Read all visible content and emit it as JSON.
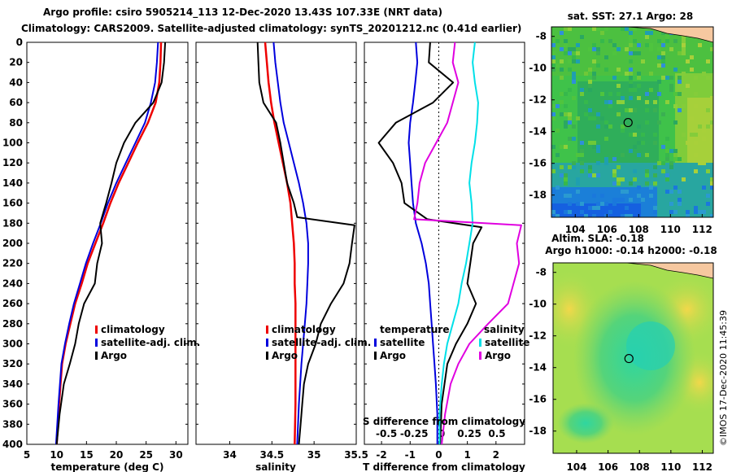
{
  "titles": {
    "line1": "Argo profile: csiro 5905214_113 12-Dec-2020 13.43S 107.33E (NRT data)",
    "line2": "Climatology: CARS2009. Satellite-adjusted climatology: synTS_20201212.nc (0.41d earlier)",
    "sst_title": "sat. SST: 27.1 Argo: 28",
    "sla_title_a": "Altim. SLA: -0.18",
    "sla_title_b": "Argo h1000: -0.14 h2000: -0.18",
    "copyright": "©IMOS 17-Dec-2020 11:45:39"
  },
  "colors": {
    "argo": "#000000",
    "climatology": "#ee0000",
    "satellite": "#0000dd",
    "sat_salinity_diff": "#00e0e8",
    "salinity_diff": "#e000e0"
  },
  "chart_data": [
    {
      "type": "line",
      "panel": "temperature",
      "xlabel": "temperature (deg C)",
      "ylabel": "depth",
      "xlim": [
        5,
        32
      ],
      "ylim": [
        0,
        400
      ],
      "xticks": [
        "5",
        "10",
        "15",
        "20",
        "25",
        "30"
      ],
      "yticks": [
        "0",
        "20",
        "40",
        "60",
        "80",
        "100",
        "120",
        "140",
        "160",
        "180",
        "200",
        "220",
        "240",
        "260",
        "280",
        "300",
        "320",
        "340",
        "360",
        "380",
        "400"
      ],
      "legend": {
        "climatology": "climatology",
        "satellite": "satellite-adj. clim.",
        "argo": "Argo"
      },
      "series": [
        {
          "name": "climatology",
          "x": [
            27.5,
            27.4,
            27.2,
            26.6,
            25.3,
            23.6,
            22.0,
            20.4,
            19.0,
            17.8,
            16.5,
            15.2,
            14.2,
            13.1,
            12.3,
            11.5,
            10.9,
            10.4,
            10.0
          ],
          "depth": [
            0,
            20,
            40,
            60,
            80,
            100,
            120,
            140,
            160,
            180,
            200,
            220,
            240,
            260,
            280,
            300,
            320,
            360,
            400
          ]
        },
        {
          "name": "satellite-adj. clim.",
          "x": [
            27.0,
            26.8,
            26.5,
            25.8,
            24.8,
            23.2,
            21.6,
            20.0,
            18.6,
            17.4,
            16.1,
            14.9,
            13.9,
            12.9,
            12.1,
            11.4,
            10.8,
            10.3,
            9.9
          ],
          "depth": [
            0,
            20,
            40,
            60,
            80,
            100,
            120,
            140,
            160,
            180,
            200,
            220,
            240,
            260,
            280,
            300,
            320,
            360,
            400
          ]
        },
        {
          "name": "Argo",
          "x": [
            28.2,
            28.0,
            27.6,
            26.2,
            23.2,
            21.3,
            20.0,
            19.2,
            18.3,
            17.3,
            17.6,
            16.8,
            16.4,
            14.6,
            13.7,
            13.1,
            12.2,
            11.2,
            10.5,
            10.0
          ],
          "depth": [
            0,
            20,
            40,
            60,
            80,
            100,
            120,
            140,
            160,
            180,
            200,
            220,
            240,
            260,
            280,
            300,
            320,
            340,
            370,
            400
          ]
        }
      ]
    },
    {
      "type": "line",
      "panel": "salinity",
      "xlabel": "salinity",
      "xlim": [
        33.6,
        35.5
      ],
      "ylim": [
        0,
        400
      ],
      "xticks": [
        "34",
        "34.5",
        "35",
        "35.5"
      ],
      "legend": {
        "climatology": "climatology",
        "satellite": "satellite-adj. clim.",
        "argo": "Argo"
      },
      "series": [
        {
          "name": "climatology",
          "x": [
            34.42,
            34.44,
            34.46,
            34.49,
            34.53,
            34.58,
            34.63,
            34.68,
            34.72,
            34.74,
            34.76,
            34.77,
            34.77,
            34.78,
            34.78,
            34.78,
            34.78,
            34.78,
            34.77
          ],
          "depth": [
            0,
            20,
            40,
            60,
            80,
            100,
            120,
            140,
            160,
            180,
            200,
            220,
            240,
            260,
            280,
            300,
            320,
            360,
            400
          ]
        },
        {
          "name": "satellite-adj. clim.",
          "x": [
            34.52,
            34.54,
            34.57,
            34.6,
            34.64,
            34.7,
            34.76,
            34.82,
            34.87,
            34.91,
            34.93,
            34.93,
            34.92,
            34.91,
            34.89,
            34.87,
            34.85,
            34.82,
            34.8
          ],
          "depth": [
            0,
            20,
            40,
            60,
            80,
            100,
            120,
            140,
            160,
            180,
            200,
            220,
            240,
            260,
            280,
            300,
            320,
            360,
            400
          ]
        },
        {
          "name": "Argo",
          "x": [
            34.33,
            34.34,
            34.35,
            34.4,
            34.55,
            34.6,
            34.64,
            34.68,
            34.76,
            34.8,
            35.48,
            35.45,
            35.42,
            35.35,
            35.2,
            35.08,
            35.02,
            34.93,
            34.88,
            34.86,
            34.84,
            34.82
          ],
          "depth": [
            0,
            20,
            40,
            60,
            80,
            100,
            120,
            140,
            160,
            174,
            182,
            200,
            220,
            240,
            260,
            280,
            300,
            320,
            340,
            360,
            380,
            400
          ]
        }
      ]
    },
    {
      "type": "line",
      "panel": "difference",
      "xlabel": "T difference from climatology",
      "top_label": "S difference from climatology",
      "xlim": [
        -2.6,
        3.0
      ],
      "ylim": [
        0,
        400
      ],
      "xticks": [
        "-2",
        "-1",
        "0",
        "1",
        "2"
      ],
      "top_xticks": [
        "-0.5",
        "-0.25",
        "0",
        "0.25",
        "0.5"
      ],
      "top_xlim": [
        -0.7,
        0.75
      ],
      "legend": {
        "temperature": "temperature",
        "t_satellite": "satellite",
        "t_argo": "Argo",
        "salinity": "salinity",
        "s_satellite": "satellite",
        "s_argo": "Argo"
      },
      "series": [
        {
          "name": "T satellite",
          "x": [
            -0.8,
            -0.75,
            -0.82,
            -0.9,
            -1.0,
            -1.05,
            -1.0,
            -0.95,
            -0.9,
            -0.8,
            -0.6,
            -0.45,
            -0.35,
            -0.3,
            -0.25,
            -0.2,
            -0.15,
            -0.1,
            -0.05,
            -0.05
          ],
          "depth": [
            0,
            20,
            40,
            60,
            80,
            100,
            120,
            140,
            160,
            180,
            200,
            220,
            240,
            260,
            280,
            300,
            320,
            340,
            370,
            400
          ]
        },
        {
          "name": "T Argo",
          "x": [
            -0.3,
            -0.35,
            0.5,
            -0.2,
            -1.5,
            -2.1,
            -1.6,
            -1.3,
            -1.2,
            -0.4,
            1.5,
            1.2,
            1.1,
            1.0,
            1.3,
            1.0,
            0.6,
            0.3,
            0.1,
            0.05
          ],
          "depth": [
            0,
            20,
            40,
            60,
            80,
            100,
            120,
            140,
            160,
            176,
            184,
            200,
            220,
            240,
            260,
            280,
            300,
            320,
            360,
            400
          ]
        },
        {
          "name": "S satellite",
          "x": [
            0.3,
            0.28,
            0.3,
            0.33,
            0.32,
            0.3,
            0.27,
            0.25,
            0.27,
            0.28,
            0.25,
            0.22,
            0.18,
            0.15,
            0.1,
            0.05,
            0.02,
            0.0,
            -0.02,
            -0.02
          ],
          "depth": [
            0,
            20,
            40,
            60,
            80,
            100,
            120,
            140,
            160,
            180,
            200,
            220,
            240,
            260,
            280,
            300,
            320,
            340,
            370,
            400
          ]
        },
        {
          "name": "S Argo",
          "x": [
            0.12,
            0.1,
            0.15,
            0.1,
            0.05,
            -0.05,
            -0.15,
            -0.2,
            -0.22,
            -0.25,
            0.72,
            0.68,
            0.7,
            0.65,
            0.6,
            0.42,
            0.25,
            0.15,
            0.08,
            0.03,
            0.0
          ],
          "depth": [
            0,
            20,
            40,
            60,
            80,
            100,
            120,
            140,
            160,
            176,
            182,
            200,
            220,
            240,
            260,
            280,
            300,
            320,
            340,
            370,
            400
          ]
        }
      ]
    },
    {
      "type": "heatmap",
      "panel": "sst_map",
      "title": "sat. SST: 27.1 Argo: 28",
      "xlim": [
        102.5,
        112.7
      ],
      "ylim": [
        -19.4,
        -7.4
      ],
      "xticks": [
        "104",
        "106",
        "108",
        "110",
        "112"
      ],
      "yticks": [
        "-8",
        "-10",
        "-12",
        "-14",
        "-16",
        "-18"
      ],
      "argo_position": {
        "lon": 107.33,
        "lat": -13.43
      }
    },
    {
      "type": "heatmap",
      "panel": "sla_map",
      "title": "Altim. SLA: -0.18",
      "xlim": [
        102.5,
        112.7
      ],
      "ylim": [
        -19.4,
        -7.4
      ],
      "xticks": [
        "104",
        "106",
        "108",
        "110",
        "112"
      ],
      "yticks": [
        "-8",
        "-10",
        "-12",
        "-14",
        "-16",
        "-18"
      ],
      "argo_position": {
        "lon": 107.33,
        "lat": -13.43
      }
    }
  ]
}
